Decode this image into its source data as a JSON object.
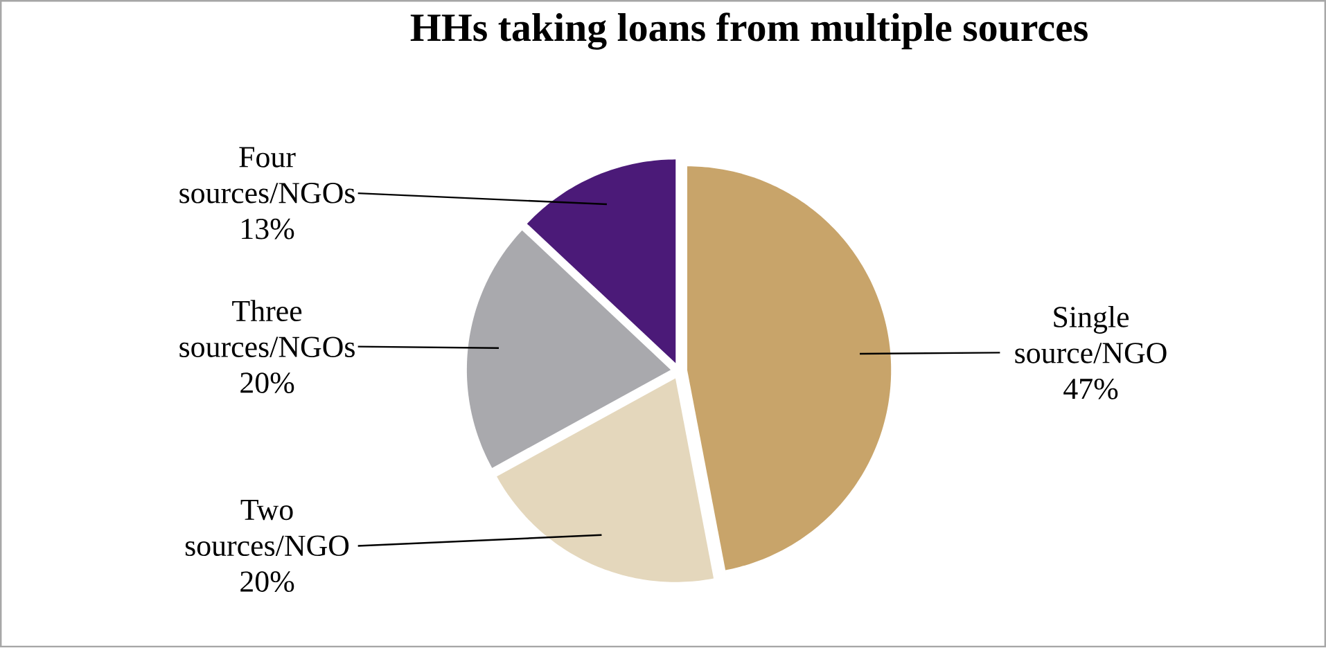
{
  "chart_data": {
    "type": "pie",
    "title": "HHs taking loans from multiple sources",
    "categories": [
      "Single source/NGO",
      "Two sources/NGO",
      "Three sources/NGOs",
      "Four sources/NGOs"
    ],
    "values": [
      47,
      20,
      20,
      13
    ],
    "value_labels": [
      "47%",
      "20%",
      "20%",
      "13%"
    ],
    "colors": [
      "#c8a46a",
      "#e4d7bc",
      "#a9a9ad",
      "#4b1a78"
    ]
  }
}
